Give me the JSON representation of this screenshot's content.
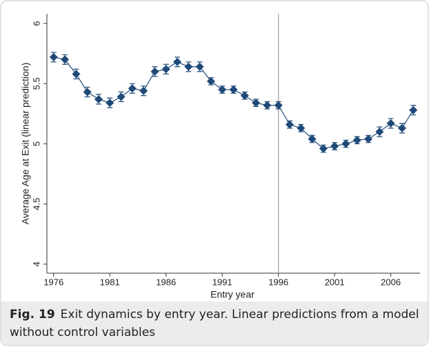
{
  "chart_data": {
    "type": "line",
    "ylabel": "Average Age at Exit (linear prediction)",
    "xlabel": "Entry year",
    "x": [
      1976,
      1977,
      1978,
      1979,
      1980,
      1981,
      1982,
      1983,
      1984,
      1985,
      1986,
      1987,
      1988,
      1989,
      1990,
      1991,
      1992,
      1993,
      1994,
      1995,
      1996,
      1997,
      1998,
      1999,
      2000,
      2001,
      2002,
      2003,
      2004,
      2005,
      2006,
      2007,
      2008
    ],
    "series": [
      {
        "color": "#1f4a78",
        "values": [
          5.72,
          5.7,
          5.58,
          5.43,
          5.37,
          5.34,
          5.39,
          5.46,
          5.44,
          5.6,
          5.62,
          5.68,
          5.64,
          5.64,
          5.52,
          5.45,
          5.45,
          5.4,
          5.34,
          5.32,
          5.32,
          5.16,
          5.13,
          5.04,
          4.96,
          4.98,
          5.0,
          5.03,
          5.04,
          5.1,
          5.17,
          5.13,
          5.28
        ],
        "errors": [
          0.04,
          0.04,
          0.04,
          0.04,
          0.04,
          0.04,
          0.04,
          0.04,
          0.04,
          0.04,
          0.04,
          0.04,
          0.04,
          0.04,
          0.03,
          0.03,
          0.03,
          0.03,
          0.03,
          0.03,
          0.03,
          0.03,
          0.03,
          0.03,
          0.03,
          0.03,
          0.03,
          0.03,
          0.03,
          0.04,
          0.04,
          0.04,
          0.04
        ]
      }
    ],
    "xlim": [
      1975.4,
      2008.6
    ],
    "xticks": [
      1976,
      1981,
      1986,
      1991,
      1996,
      2001,
      2006
    ],
    "ylim": [
      3.925,
      6.08
    ],
    "yticks": [
      4,
      4.5,
      5,
      5.5,
      6
    ],
    "xline": 1996,
    "caption": {
      "label": "Fig. 19",
      "text": "Exit dynamics by entry year. Linear predictions from a model without control variables"
    }
  }
}
